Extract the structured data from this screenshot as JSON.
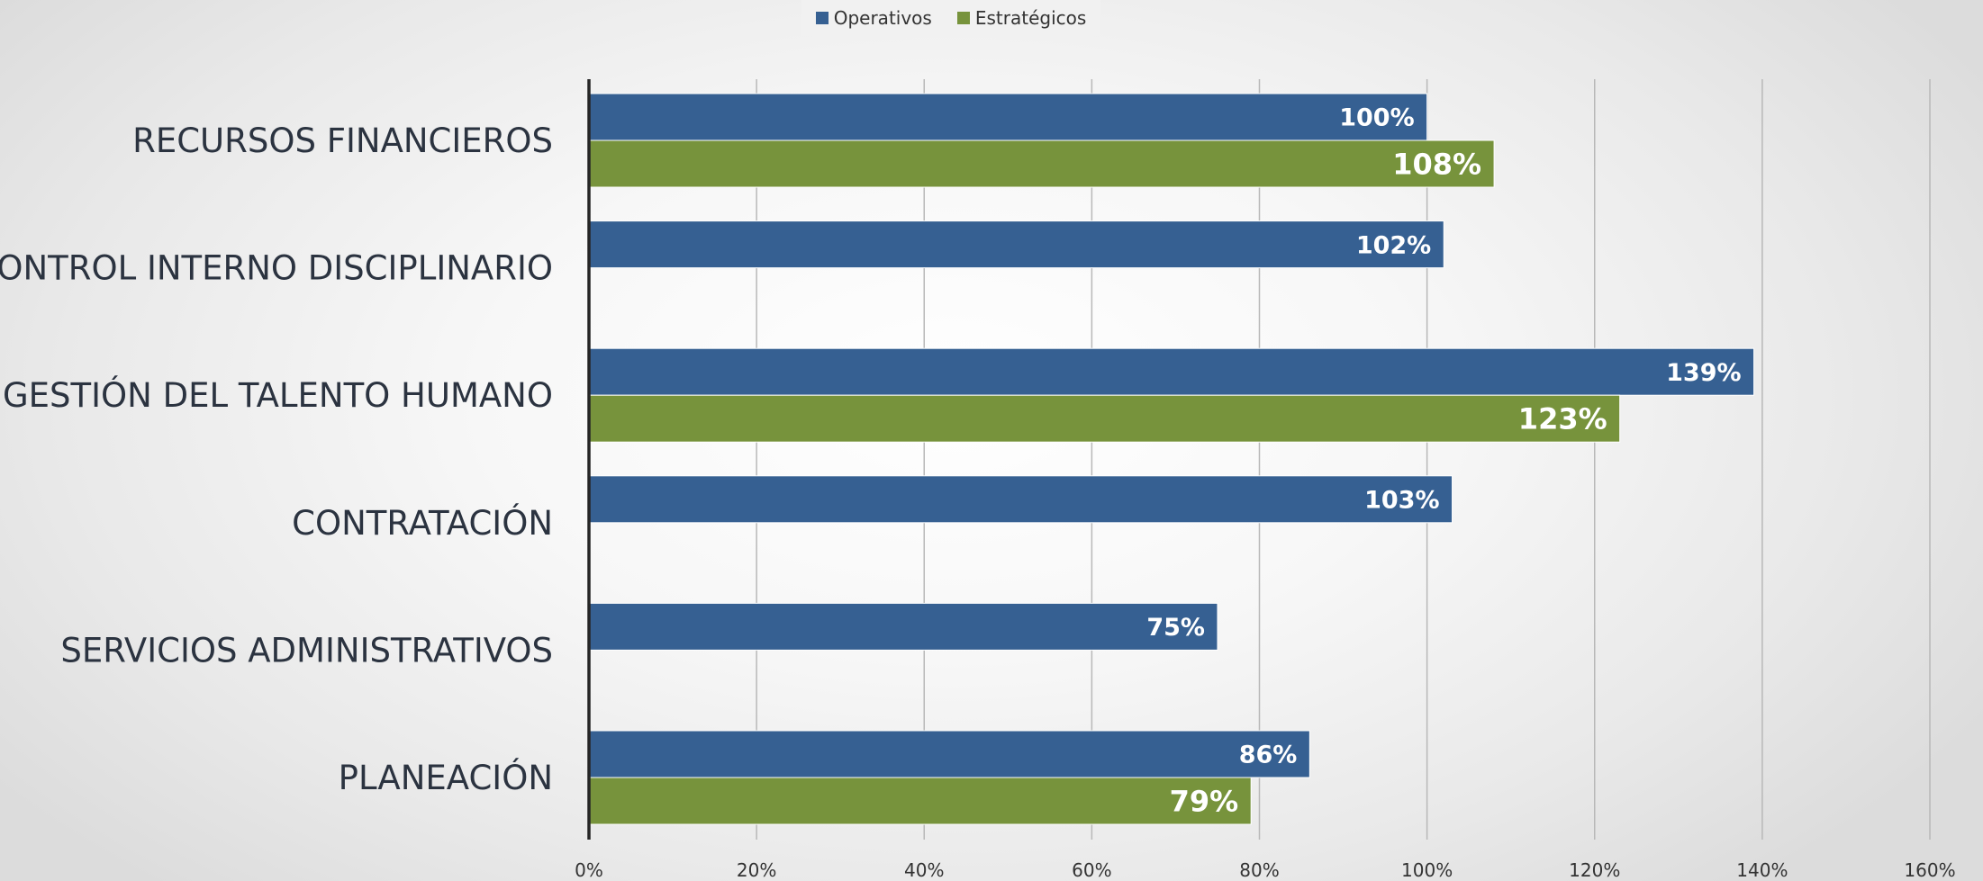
{
  "legend": {
    "operativos": "Operativos",
    "estrategicos": "Estratégicos"
  },
  "chart_data": {
    "type": "bar",
    "orientation": "horizontal",
    "categories": [
      "RECURSOS FINANCIEROS",
      "CONTROL INTERNO DISCIPLINARIO",
      "GESTIÓN DEL TALENTO HUMANO",
      "CONTRATACIÓN",
      "SERVICIOS ADMINISTRATIVOS",
      "PLANEACIÓN"
    ],
    "series": [
      {
        "name": "Operativos",
        "color": "#366092",
        "values": [
          100,
          102,
          139,
          103,
          75,
          86
        ],
        "labels": [
          "100%",
          "102%",
          "139%",
          "103%",
          "75%",
          "86%"
        ]
      },
      {
        "name": "Estratégicos",
        "color": "#77933c",
        "values": [
          108,
          null,
          123,
          null,
          null,
          79
        ],
        "labels": [
          "108%",
          null,
          "123%",
          null,
          null,
          "79%"
        ]
      }
    ],
    "xlim": [
      0,
      160
    ],
    "xticks": [
      0,
      20,
      40,
      60,
      80,
      100,
      120,
      140,
      160
    ],
    "xtick_labels": [
      "0%",
      "20%",
      "40%",
      "60%",
      "80%",
      "100%",
      "120%",
      "140%",
      "160%"
    ],
    "grid": "vertical",
    "legend_position": "top"
  }
}
